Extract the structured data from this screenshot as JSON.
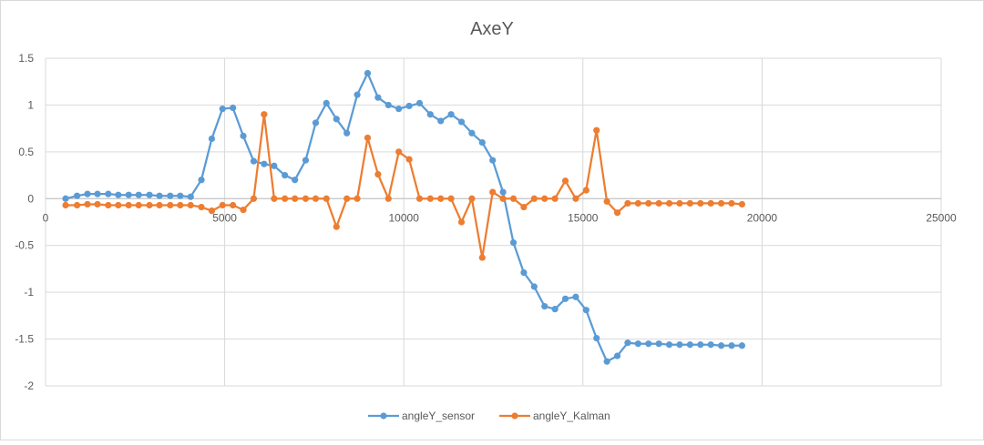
{
  "chart_data": {
    "type": "scatter",
    "title": "AxeY",
    "xlabel": "",
    "ylabel": "",
    "xlim": [
      0,
      25000
    ],
    "ylim": [
      -2,
      1.5
    ],
    "x_ticks": [
      "0",
      "5000",
      "10000",
      "15000",
      "20000",
      "25000"
    ],
    "y_ticks": [
      "1.5",
      "1",
      "0.5",
      "0",
      "-0.5",
      "-1",
      "-1.5",
      "-2"
    ],
    "x_tick_values": [
      0,
      5000,
      10000,
      15000,
      20000,
      25000
    ],
    "y_tick_values": [
      1.5,
      1,
      0.5,
      0,
      -0.5,
      -1,
      -1.5,
      -2
    ],
    "grid": true,
    "legend_position": "bottom",
    "series": [
      {
        "name": "angleY_sensor",
        "color": "#5B9BD5",
        "points": [
          [
            560,
            0.0
          ],
          [
            880,
            0.03
          ],
          [
            1170,
            0.05
          ],
          [
            1450,
            0.05
          ],
          [
            1750,
            0.05
          ],
          [
            2030,
            0.04
          ],
          [
            2320,
            0.04
          ],
          [
            2600,
            0.04
          ],
          [
            2900,
            0.04
          ],
          [
            3180,
            0.03
          ],
          [
            3480,
            0.03
          ],
          [
            3760,
            0.03
          ],
          [
            4050,
            0.02
          ],
          [
            4350,
            0.2
          ],
          [
            4640,
            0.64
          ],
          [
            4940,
            0.96
          ],
          [
            5230,
            0.97
          ],
          [
            5520,
            0.67
          ],
          [
            5810,
            0.4
          ],
          [
            6100,
            0.37
          ],
          [
            6380,
            0.35
          ],
          [
            6680,
            0.25
          ],
          [
            6960,
            0.2
          ],
          [
            7260,
            0.41
          ],
          [
            7540,
            0.81
          ],
          [
            7840,
            1.02
          ],
          [
            8120,
            0.85
          ],
          [
            8410,
            0.7
          ],
          [
            8700,
            1.11
          ],
          [
            8990,
            1.34
          ],
          [
            9280,
            1.08
          ],
          [
            9570,
            1.0
          ],
          [
            9860,
            0.96
          ],
          [
            10150,
            0.99
          ],
          [
            10440,
            1.02
          ],
          [
            10740,
            0.9
          ],
          [
            11030,
            0.83
          ],
          [
            11320,
            0.9
          ],
          [
            11610,
            0.82
          ],
          [
            11900,
            0.7
          ],
          [
            12190,
            0.6
          ],
          [
            12480,
            0.41
          ],
          [
            12770,
            0.07
          ],
          [
            13060,
            -0.47
          ],
          [
            13350,
            -0.79
          ],
          [
            13640,
            -0.94
          ],
          [
            13930,
            -1.15
          ],
          [
            14220,
            -1.18
          ],
          [
            14510,
            -1.07
          ],
          [
            14800,
            -1.05
          ],
          [
            15090,
            -1.19
          ],
          [
            15380,
            -1.49
          ],
          [
            15670,
            -1.74
          ],
          [
            15960,
            -1.68
          ],
          [
            16250,
            -1.54
          ],
          [
            16540,
            -1.55
          ],
          [
            16830,
            -1.55
          ],
          [
            17120,
            -1.55
          ],
          [
            17410,
            -1.56
          ],
          [
            17700,
            -1.56
          ],
          [
            17990,
            -1.56
          ],
          [
            18280,
            -1.56
          ],
          [
            18570,
            -1.56
          ],
          [
            18860,
            -1.57
          ],
          [
            19150,
            -1.57
          ],
          [
            19440,
            -1.57
          ]
        ]
      },
      {
        "name": "angleY_Kalman",
        "color": "#ED7D31",
        "points": [
          [
            560,
            -0.07
          ],
          [
            880,
            -0.07
          ],
          [
            1170,
            -0.06
          ],
          [
            1450,
            -0.06
          ],
          [
            1750,
            -0.07
          ],
          [
            2030,
            -0.07
          ],
          [
            2320,
            -0.07
          ],
          [
            2600,
            -0.07
          ],
          [
            2900,
            -0.07
          ],
          [
            3180,
            -0.07
          ],
          [
            3480,
            -0.07
          ],
          [
            3760,
            -0.07
          ],
          [
            4050,
            -0.07
          ],
          [
            4350,
            -0.09
          ],
          [
            4640,
            -0.13
          ],
          [
            4940,
            -0.07
          ],
          [
            5230,
            -0.07
          ],
          [
            5520,
            -0.12
          ],
          [
            5810,
            0.0
          ],
          [
            6100,
            0.9
          ],
          [
            6380,
            0.0
          ],
          [
            6680,
            0.0
          ],
          [
            6960,
            0.0
          ],
          [
            7260,
            0.0
          ],
          [
            7540,
            0.0
          ],
          [
            7840,
            0.0
          ],
          [
            8120,
            -0.3
          ],
          [
            8410,
            0.0
          ],
          [
            8700,
            0.0
          ],
          [
            8990,
            0.65
          ],
          [
            9280,
            0.26
          ],
          [
            9570,
            0.0
          ],
          [
            9860,
            0.5
          ],
          [
            10150,
            0.42
          ],
          [
            10440,
            0.0
          ],
          [
            10740,
            0.0
          ],
          [
            11030,
            0.0
          ],
          [
            11320,
            0.0
          ],
          [
            11610,
            -0.25
          ],
          [
            11900,
            0.0
          ],
          [
            12190,
            -0.63
          ],
          [
            12480,
            0.07
          ],
          [
            12770,
            0.0
          ],
          [
            13060,
            0.0
          ],
          [
            13350,
            -0.09
          ],
          [
            13640,
            0.0
          ],
          [
            13930,
            0.0
          ],
          [
            14220,
            0.0
          ],
          [
            14510,
            0.19
          ],
          [
            14800,
            0.0
          ],
          [
            15090,
            0.09
          ],
          [
            15380,
            0.73
          ],
          [
            15670,
            -0.03
          ],
          [
            15960,
            -0.15
          ],
          [
            16250,
            -0.05
          ],
          [
            16540,
            -0.05
          ],
          [
            16830,
            -0.05
          ],
          [
            17120,
            -0.05
          ],
          [
            17410,
            -0.05
          ],
          [
            17700,
            -0.05
          ],
          [
            17990,
            -0.05
          ],
          [
            18280,
            -0.05
          ],
          [
            18570,
            -0.05
          ],
          [
            18860,
            -0.05
          ],
          [
            19150,
            -0.05
          ],
          [
            19440,
            -0.06
          ]
        ]
      }
    ]
  }
}
